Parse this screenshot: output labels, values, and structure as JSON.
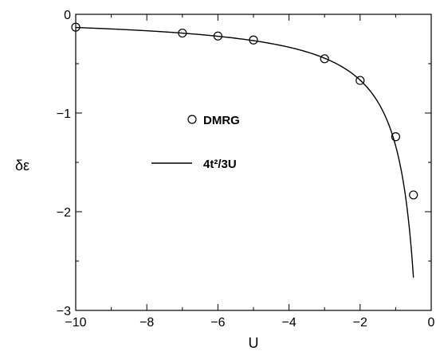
{
  "chart_data": {
    "type": "line",
    "xlabel": "U",
    "ylabel": "δε",
    "xlim": [
      -10,
      0
    ],
    "ylim": [
      -3,
      0
    ],
    "xticks": [
      {
        "value": -10,
        "label": "−10"
      },
      {
        "value": -8,
        "label": "−8"
      },
      {
        "value": -6,
        "label": "−6"
      },
      {
        "value": -4,
        "label": "−4"
      },
      {
        "value": -2,
        "label": "−2"
      },
      {
        "value": 0,
        "label": "0"
      }
    ],
    "yticks": [
      {
        "value": 0,
        "label": "0"
      },
      {
        "value": -1,
        "label": "−1"
      },
      {
        "value": -2,
        "label": "−2"
      },
      {
        "value": -3,
        "label": "−3"
      }
    ],
    "grid": false,
    "legend_position": "center-left",
    "series": [
      {
        "name": "DMRG",
        "kind": "scatter",
        "marker": "open-circle",
        "x": [
          -10,
          -7,
          -6,
          -5,
          -3,
          -2,
          -1,
          -0.5
        ],
        "y": [
          -0.13,
          -0.19,
          -0.22,
          -0.26,
          -0.45,
          -0.67,
          -1.24,
          -1.83
        ]
      },
      {
        "name": "4t²/3U",
        "kind": "line",
        "formula": "4/(3U)",
        "x_range": [
          -10,
          -0.5
        ]
      }
    ]
  }
}
